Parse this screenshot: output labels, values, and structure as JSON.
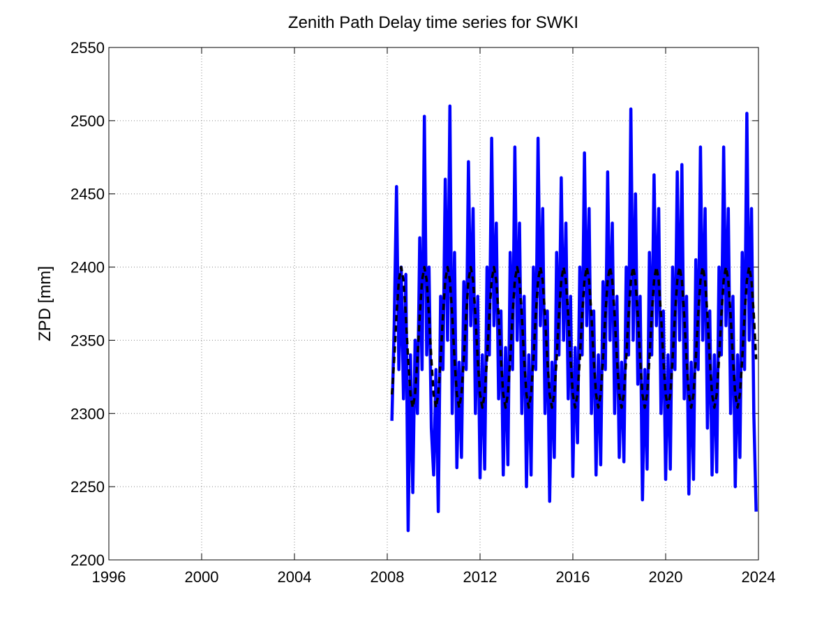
{
  "chart_data": {
    "type": "line",
    "title": "Zenith Path Delay time series for SWKI",
    "y_label": "ZPD [mm]",
    "xlim": [
      1996,
      2024
    ],
    "xticks": [
      1996,
      2000,
      2004,
      2008,
      2012,
      2016,
      2020,
      2024
    ],
    "ylim": [
      2200,
      2550
    ],
    "yticks": [
      2200,
      2250,
      2300,
      2350,
      2400,
      2450,
      2500,
      2550
    ],
    "grid": true,
    "x": [
      2008.2,
      2008.3,
      2008.4,
      2008.5,
      2008.6,
      2008.7,
      2008.8,
      2008.9,
      2009.0,
      2009.1,
      2009.2,
      2009.3,
      2009.4,
      2009.5,
      2009.6,
      2009.7,
      2009.8,
      2009.9,
      2010.0,
      2010.1,
      2010.2,
      2010.3,
      2010.4,
      2010.5,
      2010.6,
      2010.7,
      2010.8,
      2010.9,
      2011.0,
      2011.1,
      2011.2,
      2011.3,
      2011.4,
      2011.5,
      2011.6,
      2011.7,
      2011.8,
      2011.9,
      2012.0,
      2012.1,
      2012.2,
      2012.3,
      2012.4,
      2012.5,
      2012.6,
      2012.7,
      2012.8,
      2012.9,
      2013.0,
      2013.1,
      2013.2,
      2013.3,
      2013.4,
      2013.5,
      2013.6,
      2013.7,
      2013.8,
      2013.9,
      2014.0,
      2014.1,
      2014.2,
      2014.3,
      2014.4,
      2014.5,
      2014.6,
      2014.7,
      2014.8,
      2014.9,
      2015.0,
      2015.1,
      2015.2,
      2015.3,
      2015.4,
      2015.5,
      2015.6,
      2015.7,
      2015.8,
      2015.9,
      2016.0,
      2016.1,
      2016.2,
      2016.3,
      2016.4,
      2016.5,
      2016.6,
      2016.7,
      2016.8,
      2016.9,
      2017.0,
      2017.1,
      2017.2,
      2017.3,
      2017.4,
      2017.5,
      2017.6,
      2017.7,
      2017.8,
      2017.9,
      2018.0,
      2018.1,
      2018.2,
      2018.3,
      2018.4,
      2018.5,
      2018.6,
      2018.7,
      2018.8,
      2018.9,
      2019.0,
      2019.1,
      2019.2,
      2019.3,
      2019.4,
      2019.5,
      2019.6,
      2019.7,
      2019.8,
      2019.9,
      2020.0,
      2020.1,
      2020.2,
      2020.3,
      2020.4,
      2020.5,
      2020.6,
      2020.7,
      2020.8,
      2020.9,
      2021.0,
      2021.1,
      2021.2,
      2021.3,
      2021.4,
      2021.5,
      2021.6,
      2021.7,
      2021.8,
      2021.9,
      2022.0,
      2022.1,
      2022.2,
      2022.3,
      2022.4,
      2022.5,
      2022.6,
      2022.7,
      2022.8,
      2022.9,
      2023.0,
      2023.1,
      2023.2,
      2023.3,
      2023.4,
      2023.5,
      2023.6,
      2023.7,
      2023.8,
      2023.9
    ],
    "series": [
      {
        "color": "#0000ff",
        "style": "solid",
        "values": [
          2295,
          2360,
          2455,
          2330,
          2400,
          2310,
          2395,
          2220,
          2340,
          2246,
          2350,
          2300,
          2420,
          2330,
          2503,
          2340,
          2400,
          2290,
          2258,
          2330,
          2233,
          2380,
          2330,
          2460,
          2350,
          2510,
          2300,
          2410,
          2263,
          2335,
          2270,
          2390,
          2330,
          2472,
          2360,
          2440,
          2300,
          2380,
          2256,
          2340,
          2262,
          2400,
          2340,
          2488,
          2360,
          2430,
          2310,
          2370,
          2258,
          2345,
          2265,
          2410,
          2330,
          2482,
          2350,
          2430,
          2300,
          2380,
          2250,
          2340,
          2258,
          2400,
          2330,
          2488,
          2360,
          2440,
          2300,
          2370,
          2240,
          2335,
          2270,
          2410,
          2340,
          2461,
          2350,
          2430,
          2310,
          2380,
          2257,
          2345,
          2280,
          2400,
          2340,
          2478,
          2360,
          2440,
          2300,
          2370,
          2258,
          2340,
          2265,
          2390,
          2330,
          2465,
          2350,
          2430,
          2300,
          2380,
          2270,
          2335,
          2267,
          2400,
          2340,
          2508,
          2350,
          2450,
          2320,
          2380,
          2241,
          2330,
          2262,
          2410,
          2340,
          2463,
          2360,
          2440,
          2300,
          2370,
          2255,
          2340,
          2262,
          2400,
          2330,
          2465,
          2350,
          2470,
          2310,
          2380,
          2245,
          2335,
          2255,
          2405,
          2330,
          2482,
          2350,
          2440,
          2290,
          2370,
          2258,
          2340,
          2260,
          2400,
          2340,
          2482,
          2360,
          2440,
          2300,
          2380,
          2250,
          2340,
          2270,
          2410,
          2330,
          2505,
          2350,
          2440,
          2300,
          2233
        ]
      },
      {
        "color": "#000000",
        "style": "dashed",
        "values": [
          2313,
          2337,
          2367,
          2391,
          2400,
          2391,
          2367,
          2337,
          2313,
          2304,
          2313,
          2337,
          2367,
          2391,
          2400,
          2391,
          2367,
          2337,
          2313,
          2304,
          2313,
          2337,
          2367,
          2391,
          2400,
          2391,
          2367,
          2337,
          2313,
          2304,
          2313,
          2337,
          2367,
          2391,
          2400,
          2391,
          2367,
          2337,
          2313,
          2304,
          2313,
          2337,
          2367,
          2391,
          2400,
          2391,
          2367,
          2337,
          2313,
          2304,
          2313,
          2337,
          2367,
          2391,
          2400,
          2391,
          2367,
          2337,
          2313,
          2304,
          2313,
          2337,
          2367,
          2391,
          2400,
          2391,
          2367,
          2337,
          2313,
          2304,
          2313,
          2337,
          2367,
          2391,
          2400,
          2391,
          2367,
          2337,
          2313,
          2304,
          2313,
          2337,
          2367,
          2391,
          2400,
          2391,
          2367,
          2337,
          2313,
          2304,
          2313,
          2337,
          2367,
          2391,
          2400,
          2391,
          2367,
          2337,
          2313,
          2304,
          2313,
          2337,
          2367,
          2391,
          2400,
          2391,
          2367,
          2337,
          2313,
          2304,
          2313,
          2337,
          2367,
          2391,
          2400,
          2391,
          2367,
          2337,
          2313,
          2304,
          2313,
          2337,
          2367,
          2391,
          2400,
          2391,
          2367,
          2337,
          2313,
          2304,
          2313,
          2337,
          2367,
          2391,
          2400,
          2391,
          2367,
          2337,
          2313,
          2304,
          2313,
          2337,
          2367,
          2391,
          2400,
          2391,
          2367,
          2337,
          2313,
          2304,
          2313,
          2337,
          2367,
          2391,
          2400,
          2391,
          2367,
          2337
        ]
      }
    ]
  }
}
